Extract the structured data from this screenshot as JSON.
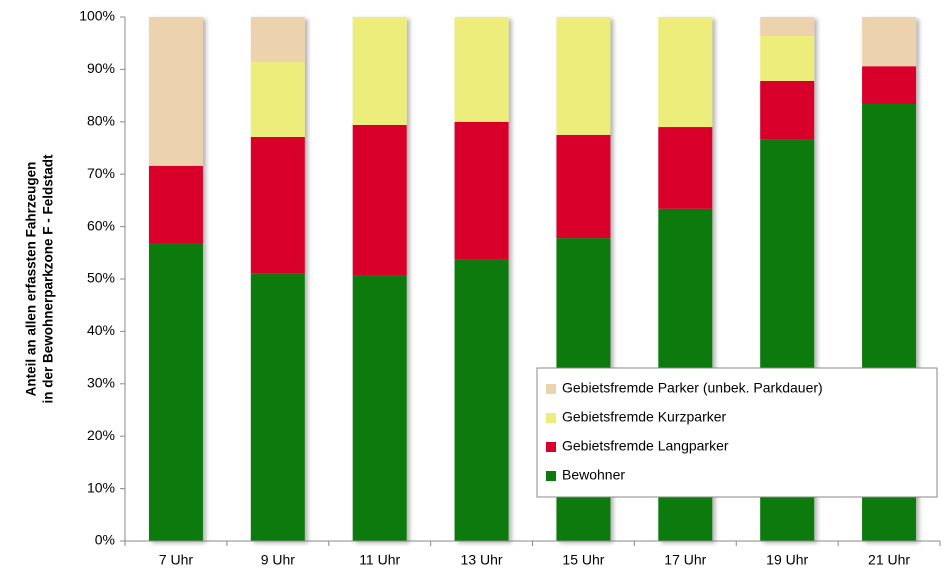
{
  "chart_data": {
    "type": "stacked_bar",
    "ylabel": [
      "Anteil  an allen erfassten Fahrzeugen",
      "in der Bewohnerparkzone F - Feldstadt"
    ],
    "categories": [
      "7 Uhr",
      "9 Uhr",
      "11 Uhr",
      "13 Uhr",
      "15 Uhr",
      "17 Uhr",
      "19 Uhr",
      "21 Uhr"
    ],
    "series": [
      {
        "name": "Bewohner",
        "color": "#0e7a0e",
        "values": [
          56.7,
          51.1,
          50.6,
          53.8,
          57.8,
          63.4,
          76.7,
          83.4
        ]
      },
      {
        "name": "Gebietsfremde Langparker",
        "color": "#d8002b",
        "values": [
          14.9,
          26.0,
          28.8,
          26.2,
          19.7,
          15.6,
          11.1,
          7.2
        ]
      },
      {
        "name": "Gebietsfremde Kurzparker",
        "color": "#eded7c",
        "values": [
          0,
          14.3,
          20.6,
          20.0,
          22.5,
          21.0,
          8.6,
          0
        ]
      },
      {
        "name": "Gebietsfremde Parker (unbek. Parkdauer)",
        "color": "#edd3ad",
        "values": [
          28.4,
          8.6,
          0,
          0,
          0,
          0,
          3.6,
          9.4
        ]
      }
    ],
    "ylim": [
      0,
      100
    ],
    "yticks": [
      {
        "value": 0,
        "label": "0%"
      },
      {
        "value": 10,
        "label": "10%"
      },
      {
        "value": 20,
        "label": "20%"
      },
      {
        "value": 30,
        "label": "30%"
      },
      {
        "value": 40,
        "label": "40%"
      },
      {
        "value": 50,
        "label": "50%"
      },
      {
        "value": 60,
        "label": "60%"
      },
      {
        "value": 70,
        "label": "70%"
      },
      {
        "value": 80,
        "label": "80%"
      },
      {
        "value": 90,
        "label": "90%"
      },
      {
        "value": 100,
        "label": "100%"
      }
    ],
    "legend": "lower right"
  }
}
